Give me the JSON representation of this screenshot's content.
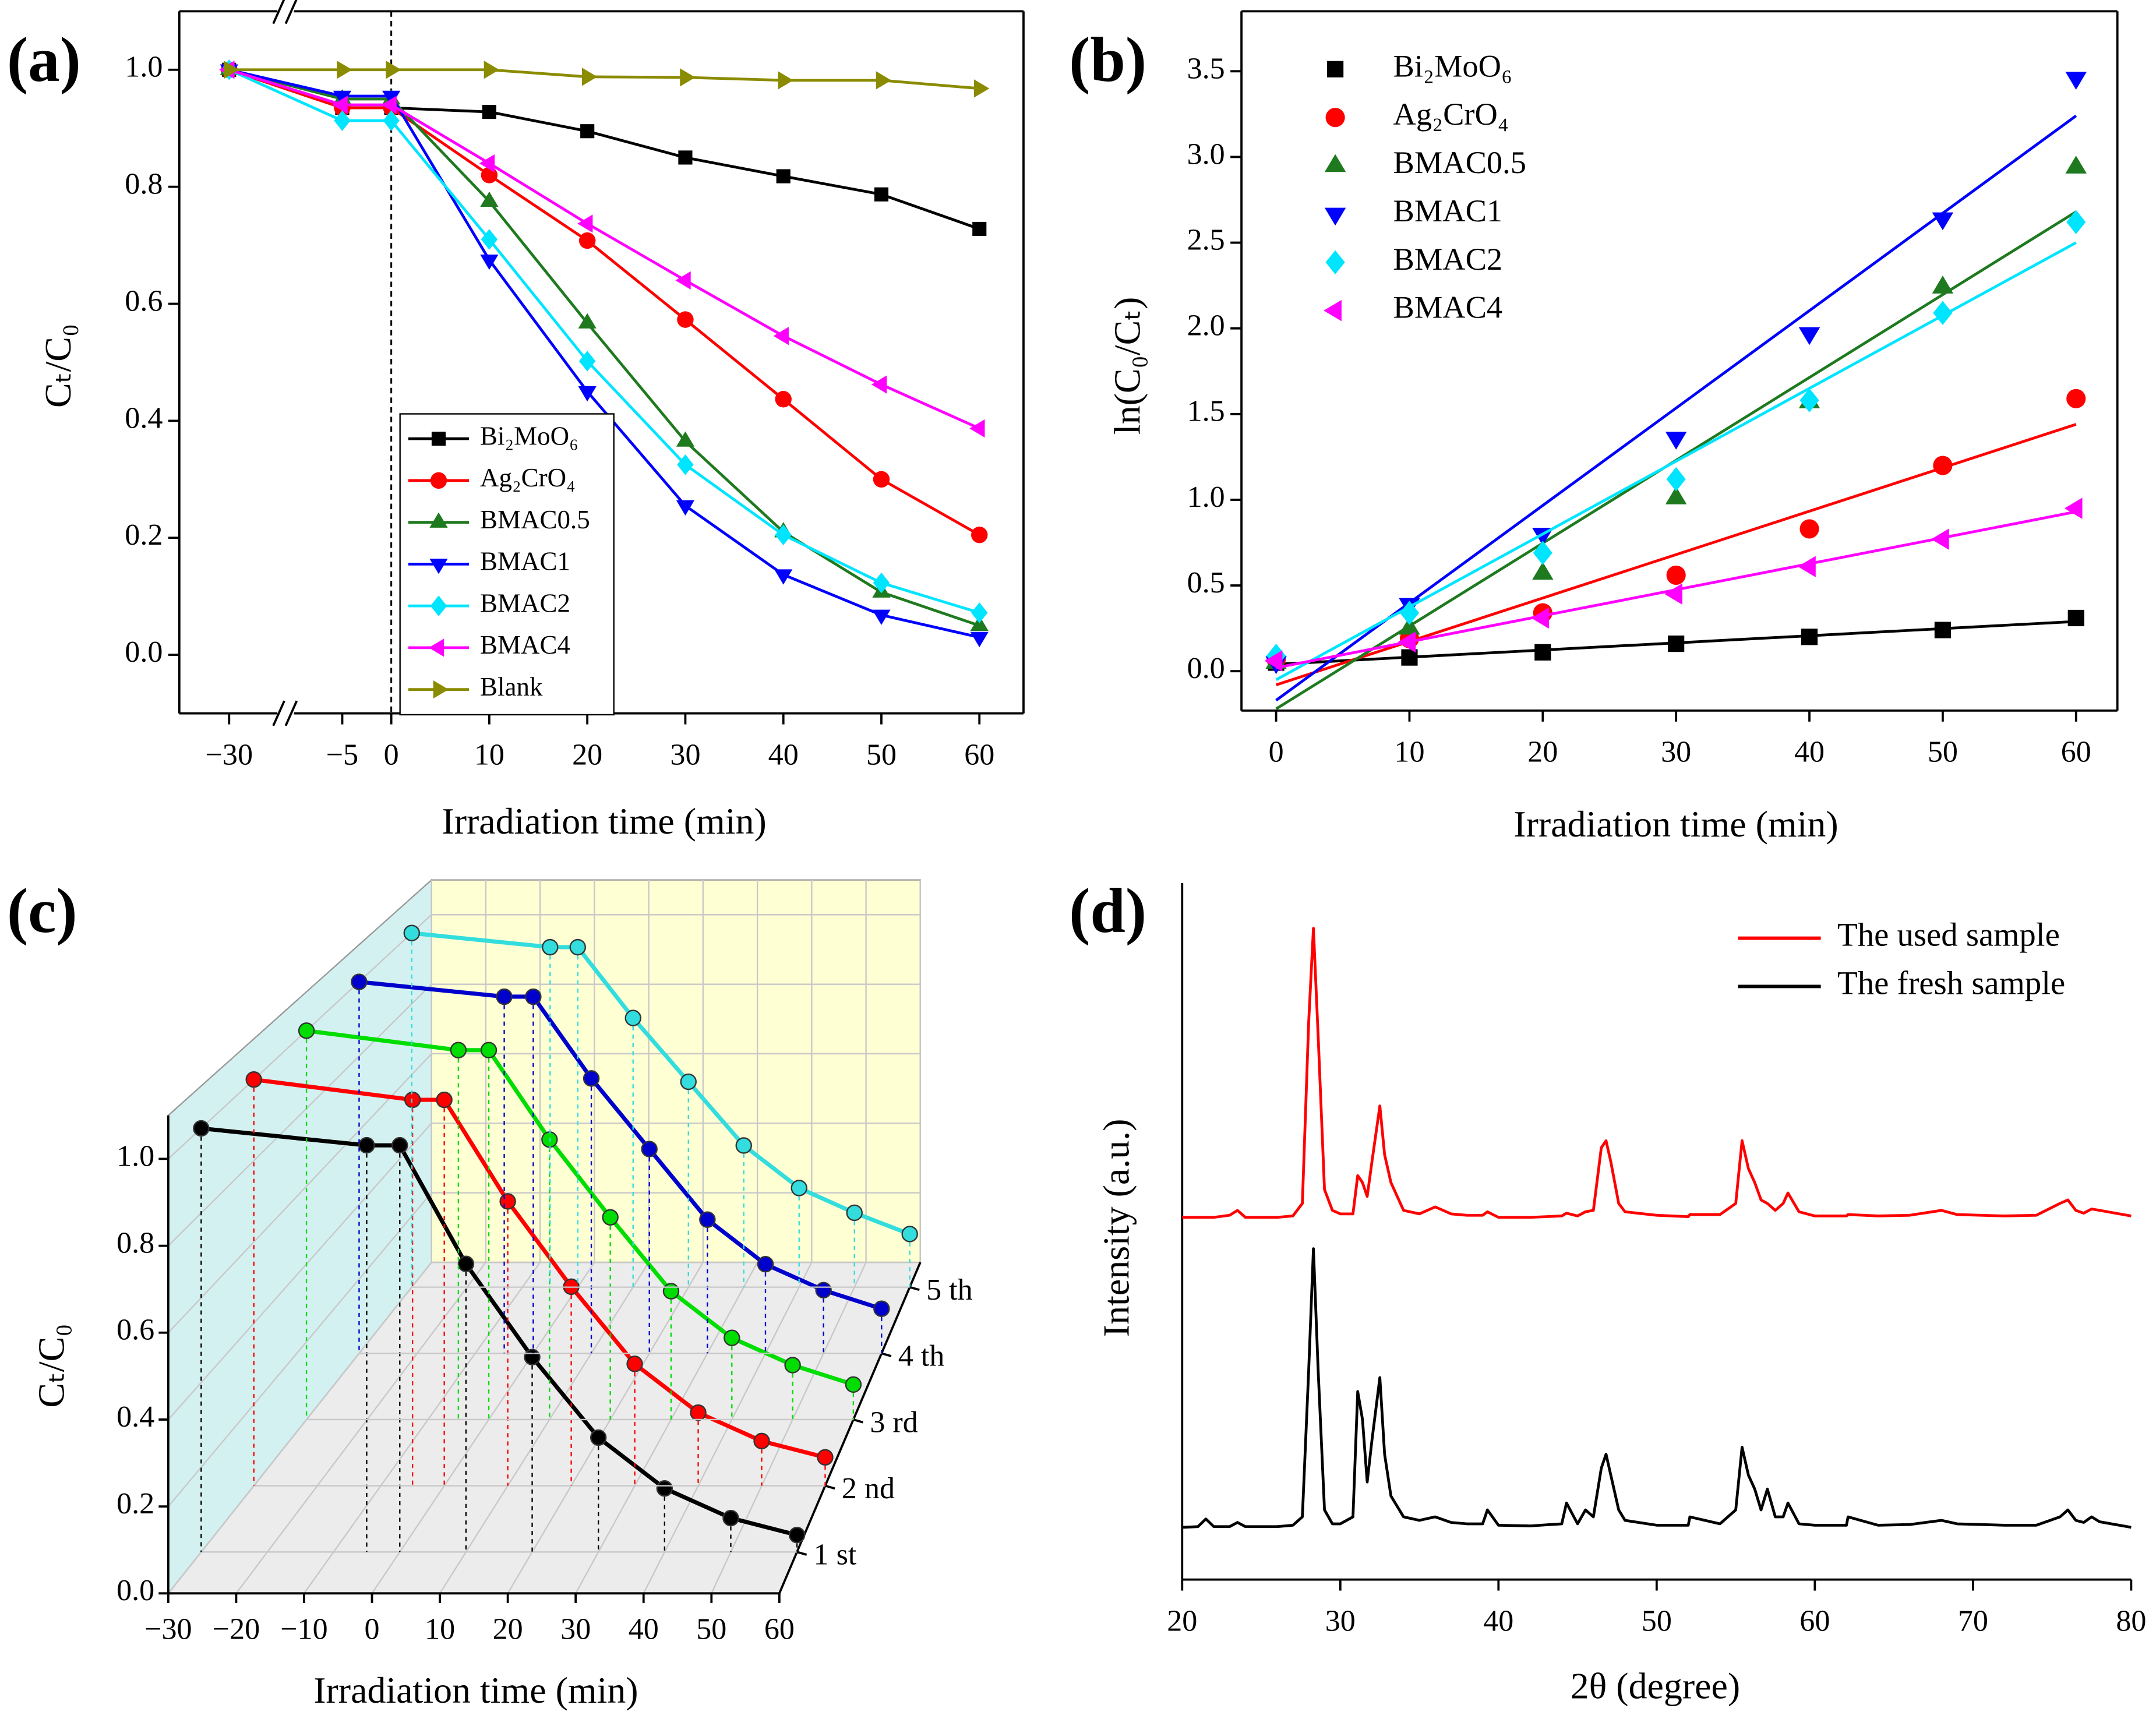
{
  "chart_data": [
    {
      "type": "line",
      "panel": "(a)",
      "x_label": "Irradiation time (min)",
      "y_label": "Cₜ/C₀",
      "x": [
        -30,
        -5,
        0,
        10,
        20,
        30,
        40,
        50,
        60
      ],
      "x_break": true,
      "reference_line": 0,
      "box": true,
      "xlim": [
        -41,
        64.5
      ],
      "ylim": [
        -0.1,
        1.1
      ],
      "xticks": [
        {
          "value": -30,
          "label": "−30"
        },
        {
          "value": -5,
          "label": "−5"
        },
        0,
        10,
        20,
        30,
        40,
        50,
        60
      ],
      "yticks": [
        {
          "value": 0,
          "label": "0.0"
        },
        0.2,
        0.4,
        0.6,
        0.8,
        {
          "value": 1,
          "label": "1.0"
        }
      ],
      "legend": "lower left",
      "series": [
        {
          "name": "Bi₂MoO₆",
          "color": "#000000",
          "marker": "square",
          "values": [
            1.0,
            0.935,
            0.935,
            0.928,
            0.895,
            0.85,
            0.818,
            0.787,
            0.728
          ]
        },
        {
          "name": "Ag₂CrO₄",
          "color": "#ff0000",
          "marker": "circle",
          "values": [
            1.0,
            0.935,
            0.935,
            0.82,
            0.708,
            0.573,
            0.437,
            0.3,
            0.205
          ]
        },
        {
          "name": "BMAC0.5",
          "color": "#1f7a1f",
          "marker": "triangle-up",
          "values": [
            1.0,
            0.95,
            0.95,
            0.775,
            0.567,
            0.365,
            0.21,
            0.107,
            0.05
          ]
        },
        {
          "name": "BMAC1",
          "color": "#0000ff",
          "marker": "triangle-down",
          "values": [
            1.0,
            0.955,
            0.955,
            0.675,
            0.45,
            0.255,
            0.137,
            0.068,
            0.03
          ]
        },
        {
          "name": "BMAC2",
          "color": "#00e5ff",
          "marker": "diamond",
          "values": [
            1.0,
            0.913,
            0.913,
            0.71,
            0.502,
            0.325,
            0.205,
            0.123,
            0.072
          ]
        },
        {
          "name": "BMAC4",
          "color": "#ff00ff",
          "marker": "triangle-left",
          "values": [
            1.0,
            0.94,
            0.94,
            0.84,
            0.737,
            0.64,
            0.545,
            0.462,
            0.387
          ]
        },
        {
          "name": "Blank",
          "color": "#8b8b00",
          "marker": "triangle-right",
          "values": [
            1.0,
            1.0,
            1.0,
            1.0,
            0.988,
            0.987,
            0.982,
            0.982,
            0.968
          ]
        }
      ]
    },
    {
      "type": "scatter",
      "panel": "(b)",
      "x_label": "Irradiation time (min)",
      "y_label": "ln(C₀/Cₜ)",
      "box": true,
      "x": [
        0,
        10,
        20,
        30,
        40,
        50,
        60
      ],
      "fit_x": [
        0,
        60
      ],
      "xlim": [
        -2.6,
        63.1
      ],
      "ylim": [
        -0.23,
        3.85
      ],
      "xticks": [
        0,
        10,
        20,
        30,
        40,
        50,
        60
      ],
      "yticks": [
        {
          "value": 0,
          "label": "0.0"
        },
        0.5,
        {
          "value": 1,
          "label": "1.0"
        },
        1.5,
        {
          "value": 2,
          "label": "2.0"
        },
        2.5,
        {
          "value": 3,
          "label": "3.0"
        },
        3.5
      ],
      "legend": "upper left",
      "series": [
        {
          "name": "Bi₂MoO₆",
          "color": "#000000",
          "marker": "square",
          "values": [
            0.05,
            0.08,
            0.11,
            0.16,
            0.2,
            0.24,
            0.31
          ],
          "fit": [
            0.04,
            0.29
          ]
        },
        {
          "name": "Ag₂CrO₄",
          "color": "#ff0000",
          "marker": "circle",
          "values": [
            0.07,
            0.19,
            0.34,
            0.56,
            0.83,
            1.2,
            1.59
          ],
          "fit": [
            -0.08,
            1.44
          ]
        },
        {
          "name": "BMAC0.5",
          "color": "#1f7a1f",
          "marker": "triangle-up",
          "values": [
            0.05,
            0.25,
            0.57,
            1.01,
            1.57,
            2.24,
            2.94
          ],
          "fit": [
            -0.22,
            2.68
          ]
        },
        {
          "name": "BMAC1",
          "color": "#0000ff",
          "marker": "triangle-down",
          "values": [
            0.05,
            0.39,
            0.8,
            1.36,
            1.97,
            2.64,
            3.46
          ],
          "fit": [
            -0.17,
            3.24
          ]
        },
        {
          "name": "BMAC2",
          "color": "#00e5ff",
          "marker": "diamond",
          "values": [
            0.09,
            0.34,
            0.69,
            1.12,
            1.58,
            2.09,
            2.62
          ],
          "fit": [
            -0.05,
            2.5
          ]
        },
        {
          "name": "BMAC4",
          "color": "#ff00ff",
          "marker": "triangle-left",
          "values": [
            0.06,
            0.17,
            0.31,
            0.45,
            0.61,
            0.77,
            0.95
          ],
          "fit": [
            0.02,
            0.93
          ]
        }
      ]
    },
    {
      "type": "line3d",
      "panel": "(c)",
      "x_label": "Irradiation time (min)",
      "y_label": "Cₜ/C₀",
      "x": [
        -30,
        -5,
        0,
        10,
        20,
        30,
        40,
        50,
        60
      ],
      "xlim": [
        -30,
        60
      ],
      "ylim": [
        0,
        1.1
      ],
      "xticks": [
        {
          "value": -30,
          "label": "−30"
        },
        {
          "value": -20,
          "label": "−20"
        },
        {
          "value": -10,
          "label": "−10"
        },
        0,
        10,
        20,
        30,
        40,
        50,
        60
      ],
      "yticks": [
        {
          "value": 0,
          "label": "0.0"
        },
        0.2,
        0.4,
        0.6,
        0.8,
        {
          "value": 1,
          "label": "1.0"
        }
      ],
      "series": [
        {
          "name": "1 st",
          "color": "#000000",
          "values": [
            1.0,
            0.96,
            0.96,
            0.68,
            0.46,
            0.27,
            0.15,
            0.08,
            0.04
          ]
        },
        {
          "name": "2 nd",
          "color": "#ff0000",
          "values": [
            1.0,
            0.95,
            0.95,
            0.7,
            0.49,
            0.3,
            0.18,
            0.11,
            0.07
          ]
        },
        {
          "name": "3 rd",
          "color": "#00dd00",
          "values": [
            1.0,
            0.95,
            0.95,
            0.72,
            0.52,
            0.33,
            0.21,
            0.14,
            0.09
          ]
        },
        {
          "name": "4 th",
          "color": "#0000cc",
          "values": [
            1.0,
            0.96,
            0.96,
            0.74,
            0.55,
            0.36,
            0.24,
            0.17,
            0.12
          ]
        },
        {
          "name": "5 th",
          "color": "#33dddd",
          "values": [
            1.0,
            0.96,
            0.96,
            0.76,
            0.58,
            0.4,
            0.28,
            0.21,
            0.15
          ]
        }
      ]
    },
    {
      "type": "line",
      "panel": "(d)",
      "x_label": "2θ (degree)",
      "y_label": "Intensity (a.u.)",
      "x": [
        20,
        21,
        21.5,
        22,
        23,
        23.5,
        24,
        25,
        26,
        27,
        27.6,
        28,
        28.3,
        28.6,
        29,
        29.5,
        30,
        30.8,
        31.1,
        31.4,
        31.7,
        32,
        32.5,
        32.8,
        33.2,
        34,
        35,
        36,
        37,
        38,
        39,
        39.3,
        40,
        42,
        44,
        44.3,
        45,
        45.5,
        46,
        46.5,
        46.8,
        47.1,
        47.6,
        48,
        50,
        52,
        52.1,
        54,
        55,
        55.4,
        55.8,
        56.2,
        56.6,
        57,
        57.5,
        58,
        58.3,
        59,
        60,
        62,
        62.1,
        64,
        66,
        68,
        69,
        72,
        74,
        75.5,
        76,
        76.5,
        77,
        77.5,
        78,
        80
      ],
      "xlim": [
        20,
        80
      ],
      "ylim": [
        0,
        100
      ],
      "xticks": [
        20,
        30,
        40,
        50,
        60,
        70,
        80
      ],
      "legend": "upper right",
      "series": [
        {
          "name": "The used sample",
          "color": "#ff0000",
          "values": [
            52,
            52,
            52,
            52,
            52.3,
            53,
            52,
            52,
            52,
            52.2,
            54,
            80,
            93.5,
            78,
            56,
            53,
            52.5,
            52.5,
            58,
            57,
            55,
            60,
            68,
            61,
            57,
            53,
            52.5,
            53.5,
            52.5,
            52.3,
            52.3,
            52.8,
            52,
            52,
            52.2,
            52.6,
            52.2,
            52.8,
            53,
            62,
            63,
            60,
            54,
            52.8,
            52.3,
            52.1,
            52.4,
            52.4,
            54,
            63,
            59,
            57,
            54.5,
            54,
            53,
            54,
            55.5,
            52.8,
            52.2,
            52.2,
            52.4,
            52.2,
            52.3,
            53,
            52.4,
            52.2,
            52.3,
            54,
            54.5,
            53,
            52.6,
            53.2,
            53,
            52.2
          ]
        },
        {
          "name": "The fresh sample",
          "color": "#000000",
          "values": [
            7.5,
            7.6,
            8.7,
            7.6,
            7.6,
            8.2,
            7.6,
            7.6,
            7.6,
            7.8,
            9,
            30,
            47.5,
            30,
            10,
            8,
            8,
            9,
            27,
            23,
            14,
            20,
            29,
            18,
            12,
            9,
            8.5,
            9,
            8.2,
            8,
            8,
            10,
            7.8,
            7.7,
            8,
            11,
            8,
            10,
            9,
            16,
            18,
            15,
            10,
            8.5,
            7.8,
            7.8,
            9,
            8,
            10,
            19,
            15,
            13,
            10,
            13,
            9,
            9,
            11,
            8,
            7.8,
            7.8,
            9,
            7.8,
            7.9,
            8.5,
            8,
            7.8,
            7.8,
            9,
            10,
            8.5,
            8.2,
            9,
            8.3,
            7.5
          ]
        }
      ]
    }
  ]
}
